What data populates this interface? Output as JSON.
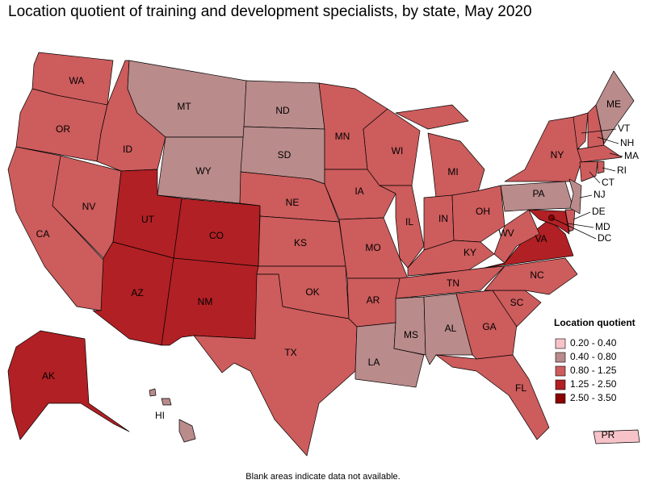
{
  "title": "Location quotient of training and development specialists, by state, May 2020",
  "note": "Blank areas indicate data not available.",
  "legend": {
    "title": "Location quotient",
    "entries": [
      {
        "label": "0.20 - 0.40",
        "color": "#f7c3c8"
      },
      {
        "label": "0.40 - 0.80",
        "color": "#ba8b8b"
      },
      {
        "label": "0.80 - 1.25",
        "color": "#cd5c5c"
      },
      {
        "label": "1.25 - 2.50",
        "color": "#b12024"
      },
      {
        "label": "2.50 - 3.50",
        "color": "#8b0000"
      }
    ]
  },
  "states": [
    {
      "abbr": "WA",
      "bin": 2
    },
    {
      "abbr": "OR",
      "bin": 2
    },
    {
      "abbr": "CA",
      "bin": 2
    },
    {
      "abbr": "NV",
      "bin": 2
    },
    {
      "abbr": "ID",
      "bin": 2
    },
    {
      "abbr": "MT",
      "bin": 1
    },
    {
      "abbr": "WY",
      "bin": 1
    },
    {
      "abbr": "UT",
      "bin": 3
    },
    {
      "abbr": "CO",
      "bin": 3
    },
    {
      "abbr": "AZ",
      "bin": 3
    },
    {
      "abbr": "NM",
      "bin": 3
    },
    {
      "abbr": "ND",
      "bin": 1
    },
    {
      "abbr": "SD",
      "bin": 1
    },
    {
      "abbr": "NE",
      "bin": 2
    },
    {
      "abbr": "KS",
      "bin": 2
    },
    {
      "abbr": "OK",
      "bin": 2
    },
    {
      "abbr": "TX",
      "bin": 2
    },
    {
      "abbr": "MN",
      "bin": 2
    },
    {
      "abbr": "IA",
      "bin": 2
    },
    {
      "abbr": "MO",
      "bin": 2
    },
    {
      "abbr": "AR",
      "bin": 2
    },
    {
      "abbr": "LA",
      "bin": 1
    },
    {
      "abbr": "WI",
      "bin": 2
    },
    {
      "abbr": "IL",
      "bin": 2
    },
    {
      "abbr": "MI",
      "bin": 2
    },
    {
      "abbr": "IN",
      "bin": 2
    },
    {
      "abbr": "OH",
      "bin": 2
    },
    {
      "abbr": "KY",
      "bin": 2
    },
    {
      "abbr": "TN",
      "bin": 2
    },
    {
      "abbr": "MS",
      "bin": 1
    },
    {
      "abbr": "AL",
      "bin": 1
    },
    {
      "abbr": "GA",
      "bin": 2
    },
    {
      "abbr": "FL",
      "bin": 2
    },
    {
      "abbr": "SC",
      "bin": 2
    },
    {
      "abbr": "NC",
      "bin": 2
    },
    {
      "abbr": "VA",
      "bin": 3
    },
    {
      "abbr": "WV",
      "bin": 2
    },
    {
      "abbr": "PA",
      "bin": 1
    },
    {
      "abbr": "NY",
      "bin": 2
    },
    {
      "abbr": "MD",
      "bin": 3
    },
    {
      "abbr": "DE",
      "bin": 2
    },
    {
      "abbr": "NJ",
      "bin": 1
    },
    {
      "abbr": "VT",
      "bin": 2
    },
    {
      "abbr": "NH",
      "bin": 2
    },
    {
      "abbr": "ME",
      "bin": 1
    },
    {
      "abbr": "MA",
      "bin": 2
    },
    {
      "abbr": "CT",
      "bin": 2
    },
    {
      "abbr": "RI",
      "bin": 2
    },
    {
      "abbr": "DC",
      "bin": 4
    },
    {
      "abbr": "AK",
      "bin": 3
    },
    {
      "abbr": "HI",
      "bin": 1
    },
    {
      "abbr": "PR",
      "bin": 0
    }
  ]
}
